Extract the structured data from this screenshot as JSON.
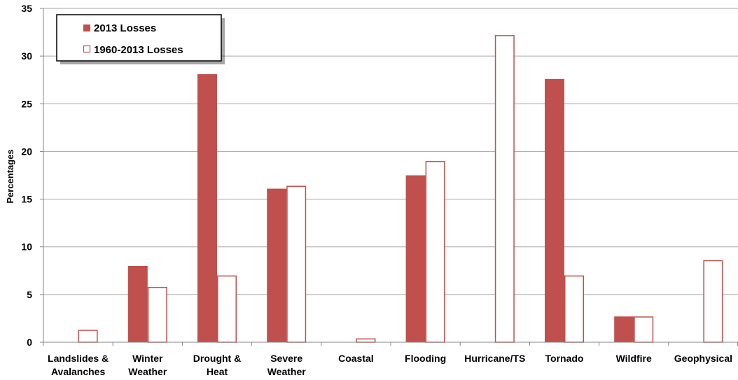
{
  "chart_data": {
    "type": "bar",
    "ylabel": "Percentages",
    "xlabel": "",
    "title": "",
    "ylim": [
      0,
      35
    ],
    "yticks": [
      0,
      5,
      10,
      15,
      20,
      25,
      30,
      35
    ],
    "grid": true,
    "legend_position": "top-left",
    "categories": [
      [
        "Landslides &",
        "Avalanches"
      ],
      [
        "Winter",
        "Weather"
      ],
      [
        "Drought &",
        "Heat"
      ],
      [
        "Severe",
        "Weather"
      ],
      [
        "Coastal"
      ],
      [
        "Flooding"
      ],
      [
        "Hurricane/TS"
      ],
      [
        "Tornado"
      ],
      [
        "Wildfire"
      ],
      [
        "Geophysical"
      ]
    ],
    "series": [
      {
        "name": "2013 Losses",
        "style": "filled",
        "values": [
          0,
          8.0,
          28.1,
          16.1,
          0,
          17.5,
          0,
          27.6,
          2.7,
          0
        ]
      },
      {
        "name": "1960-2013 Losses",
        "style": "outline",
        "values": [
          1.3,
          5.8,
          7.0,
          16.4,
          0.4,
          19.0,
          32.2,
          7.0,
          2.7,
          8.6
        ]
      }
    ],
    "colors": {
      "bar": "#c0504d",
      "outline_fill": "#ffffff",
      "grid": "#a6a6a6",
      "axis": "#868686"
    }
  }
}
